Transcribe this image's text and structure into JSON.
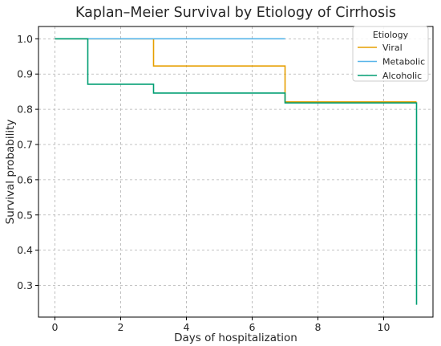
{
  "chart_data": {
    "type": "line",
    "step": "post",
    "title": "Kaplan–Meier Survival by Etiology of Cirrhosis",
    "xlabel": "Days of hospitalization",
    "ylabel": "Survival probability",
    "xlim": [
      -0.5,
      11.5
    ],
    "ylim": [
      0.21,
      1.035
    ],
    "xticks": [
      0,
      2,
      4,
      6,
      8,
      10
    ],
    "yticks": [
      0.3,
      0.4,
      0.5,
      0.6,
      0.7,
      0.8,
      0.9,
      1.0
    ],
    "grid": true,
    "legend": {
      "title": "Etiology",
      "placement": "top-right"
    },
    "series": [
      {
        "name": "Viral",
        "color": "#E69F00",
        "x": [
          0,
          3,
          7,
          11
        ],
        "y": [
          1.0,
          0.923,
          0.821,
          0.821
        ]
      },
      {
        "name": "Metabolic",
        "color": "#56B4E9",
        "x": [
          0,
          7
        ],
        "y": [
          1.0,
          1.0
        ]
      },
      {
        "name": "Alcoholic",
        "color": "#009E73",
        "x": [
          0,
          1,
          3,
          7,
          11,
          11
        ],
        "y": [
          1.0,
          0.871,
          0.846,
          0.818,
          0.818,
          0.245
        ]
      }
    ]
  }
}
